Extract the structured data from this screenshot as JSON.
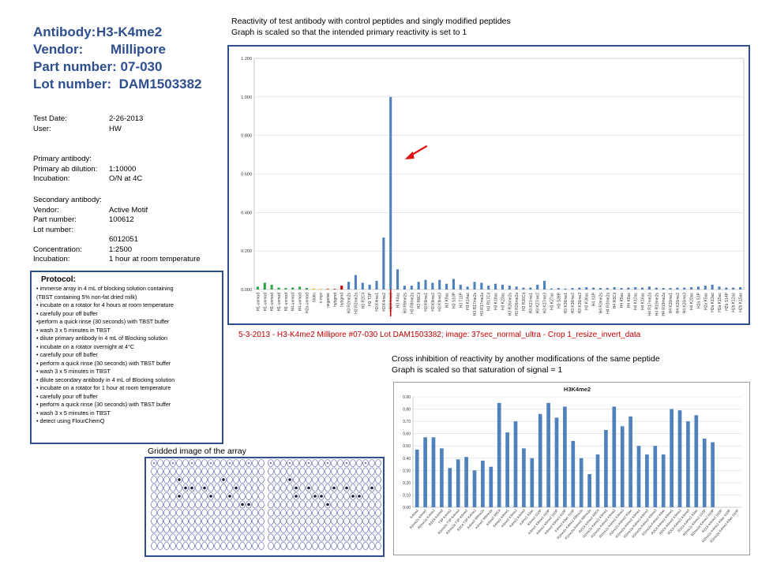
{
  "header": {
    "antibody_label": "Antibody:",
    "antibody_value": "H3-K4me2",
    "vendor_label": "Vendor:",
    "vendor_value": "Millipore",
    "part_label": "Part number:",
    "part_value": "07-030",
    "lot_label": "Lot number:",
    "lot_value": "DAM1503382"
  },
  "test_info": [
    {
      "label": "Test Date:",
      "value": "2-26-2013"
    },
    {
      "label": "User:",
      "value": "HW"
    }
  ],
  "primary": {
    "heading": "Primary antibody:",
    "rows": [
      {
        "label": "Primary ab dilution:",
        "value": "1:10000"
      },
      {
        "label": "Incubation:",
        "value": "O/N at 4C"
      }
    ]
  },
  "secondary": {
    "heading": "Secondary antibody:",
    "rows": [
      {
        "label": "Vendor:",
        "value": "Active Motif"
      },
      {
        "label": "Part number:",
        "value": "100612"
      },
      {
        "label": "Lot number:",
        "value": ""
      },
      {
        "label": "",
        "value": "6012051"
      },
      {
        "label": "Concentration:",
        "value": "1:2500"
      },
      {
        "label": "Incubation:",
        "value": "1 hour at room temperature"
      }
    ]
  },
  "protocol": {
    "title": "Protocol:",
    "steps": [
      "• immerse array in 4 mL of blocking solution containing",
      "(TBST containing 5% non-fat dried milk)",
      "• incubate on a rotator for 4 hours at room temperature",
      "• carefully pour off buffer",
      "•perform a quick rinse (30 seconds) with TBST buffer",
      "• wash 3 x 5 minutes in TBST",
      "• dilute primary antibody in 4 mL of Blocking solution",
      "• incubate on a rotator overnight at 4°C",
      "•  carefully pour off buffer",
      "• perform a quick rinse (30 seconds) with TBST buffer",
      "• wash 3 x 5 minutes in TBST",
      "•  dilute secondary antibody in 4 mL of Blocking solution",
      "• incubate on a rotator for 1 hour at room temperature",
      "• carefully pour off buffer",
      "• perform a quick rinse (30 seconds) with TBST buffer",
      "• wash 3 x 5 minutes in TBST",
      "• detect using FlourChemQ"
    ]
  },
  "reactivity_caption": {
    "line1": "Reactivity of test antibody with control peptides and singly modified peptides",
    "line2": "Graph is scaled so that the intended primary reactivity is set to 1"
  },
  "image_caption": "5-3-2013 - H3-K4me2 Millipore #07-030 Lot DAM1503382; image: 37sec_normal_ultra - Crop 1_resize_invert_data",
  "cross_caption": {
    "line1": "Cross inhibition of reactivity by another modifications of the same peptide",
    "line2": "Graph is scaled so that saturation of signal = 1"
  },
  "array_caption": "Gridded image of the array",
  "colors": {
    "accent": "#2e4e8e",
    "bar": "#4f81bd",
    "red": "#c00000"
  },
  "icons": {
    "arrow": "red-arrow-icon"
  },
  "chart_data": [
    {
      "type": "bar",
      "ylim": [
        0,
        1.2
      ],
      "yticks": [
        "0.000",
        "0.200",
        "0.400",
        "0.600",
        "0.800",
        "1.000",
        "1.200"
      ],
      "grid": true,
      "categories": [
        "H1-unmod",
        "H1-unmod",
        "H1-unmod",
        "H1-unmod",
        "H1-unmod",
        "H4-unmod",
        "H4-unmod",
        "H2a-unmod",
        "biotin",
        "c-myc",
        "negative",
        "hybgmd",
        "hybgmd",
        "H3 R2me2s",
        "H3 R2me2a",
        "H3 R2Cit",
        "H3 T3P",
        "H3 K4me1",
        "H3 K4me2",
        "H3 K4me3",
        "H3 K4ac",
        "H3 R8me2s",
        "H3 R8me2a",
        "H3 R8Cit",
        "H3 K9me1",
        "H3 K9me2",
        "H3 K9me3",
        "H3 K9ac",
        "H3 S10P",
        "H3 T11P",
        "H3 K14ac",
        "H3 R17me2s",
        "H3 R17me2a",
        "H3 R17Cit",
        "H3 K18ac",
        "H3 K23ac",
        "H3 R26me2s",
        "H3 R26me2a",
        "H3 R26Cit",
        "H3 K27me1",
        "H3 K27me2",
        "H3 K27me3",
        "H3 K27ac",
        "H3 S28P",
        "H3 K36me1",
        "H3 K36me2",
        "H3 K36me3",
        "H3 K36ac",
        "H4 S1P",
        "H4 R3me2s",
        "H4 R3me2a",
        "H4 R3Cit",
        "H4 K5ac",
        "H4 K8ac",
        "H4 K12ac",
        "H4 K16ac",
        "H4 R17me2a",
        "H4 R19me2s",
        "H4 R19me2a",
        "H4 K20me1",
        "H4 K20me2",
        "H4 K20me3",
        "H4 K20ac",
        "H2a S1P",
        "H2a K5ac",
        "H2a K13ac",
        "H2a K15ac",
        "H2b S14P",
        "H2b K12ac",
        "H2b K15ac"
      ],
      "values": [
        0.015,
        0.035,
        0.025,
        0.01,
        0.008,
        0.01,
        0.015,
        0.008,
        0.005,
        0.003,
        0.005,
        0.003,
        0.02,
        0.04,
        0.075,
        0.035,
        0.025,
        0.045,
        0.27,
        1.0,
        0.105,
        0.02,
        0.02,
        0.04,
        0.05,
        0.035,
        0.05,
        0.03,
        0.055,
        0.025,
        0.015,
        0.04,
        0.035,
        0.02,
        0.03,
        0.025,
        0.02,
        0.015,
        0.01,
        0.01,
        0.025,
        0.045,
        0.005,
        0.008,
        0.005,
        0.008,
        0.01,
        0.012,
        0.01,
        0.008,
        0.008,
        0.012,
        0.008,
        0.01,
        0.012,
        0.01,
        0.015,
        0.01,
        0.008,
        0.008,
        0.01,
        0.01,
        0.012,
        0.015,
        0.02,
        0.025,
        0.015,
        0.01,
        0.01,
        0.012
      ]
    },
    {
      "type": "bar",
      "title": "H3K4me2",
      "ylim": [
        0,
        0.9
      ],
      "yticks": [
        "0.00",
        "0.10",
        "0.20",
        "0.30",
        "0.40",
        "0.50",
        "0.60",
        "0.70",
        "0.80",
        "0.90"
      ],
      "grid": true,
      "categories": [
        "K4me2",
        "R2me2s K4me2",
        "R2me2a K4me2",
        "R2Cit K4me2",
        "T3P K4me2",
        "R2me2s T3P K4me2",
        "R2me2a T3P K4me2",
        "R2Cit T3P K4me2",
        "K4me2 R8me2s",
        "K4me2 R8me2a",
        "K4me2 R8Cit",
        "K4me2 K9me1",
        "K4me2 K9me2",
        "K4me2 K9me3",
        "K4me2 K9ac",
        "K4me2 S10P",
        "K4me2 K9me1 S10P",
        "K4me2 K9me2 S10P",
        "K4me2 K9me3 S10P",
        "K4me2 K9ac S10P",
        "R2me2s K4me2 R8me2s",
        "R2me2a K4me2 R8me2a",
        "R2Cit K4me2 R8Cit",
        "R2me2s K4me2 K9me1",
        "R2me2s K4me2 K9me2",
        "R2me2s K4me2 K9me3",
        "R2me2s K4me2 K9ac",
        "R2me2a K4me2 K9me1",
        "R2me2a K4me2 K9me2",
        "R2me2a K4me2 K9me3",
        "R2me2a K4me2 K9ac",
        "R2Cit K4me2 K9me1",
        "R2Cit K4me2 K9me2",
        "R2Cit K4me2 K9me3",
        "R2Cit K4me2 K9ac",
        "R2me2s K4me2 S10P",
        "R2me2a K4me2 S10P",
        "R2Cit K4me2 S10P",
        "R2me2s K4me2 K9ac S10P",
        "R2me2a K4me2 K9ac S10P"
      ],
      "values": [
        0.47,
        0.57,
        0.57,
        0.48,
        0.32,
        0.39,
        0.41,
        0.3,
        0.38,
        0.33,
        0.85,
        0.61,
        0.7,
        0.48,
        0.4,
        0.76,
        0.85,
        0.73,
        0.82,
        0.54,
        0.4,
        0.27,
        0.43,
        0.63,
        0.82,
        0.66,
        0.74,
        0.5,
        0.43,
        0.5,
        0.43,
        0.8,
        0.79,
        0.7,
        0.75,
        0.56,
        0.53,
        0.0,
        0.0,
        0.0
      ]
    }
  ]
}
